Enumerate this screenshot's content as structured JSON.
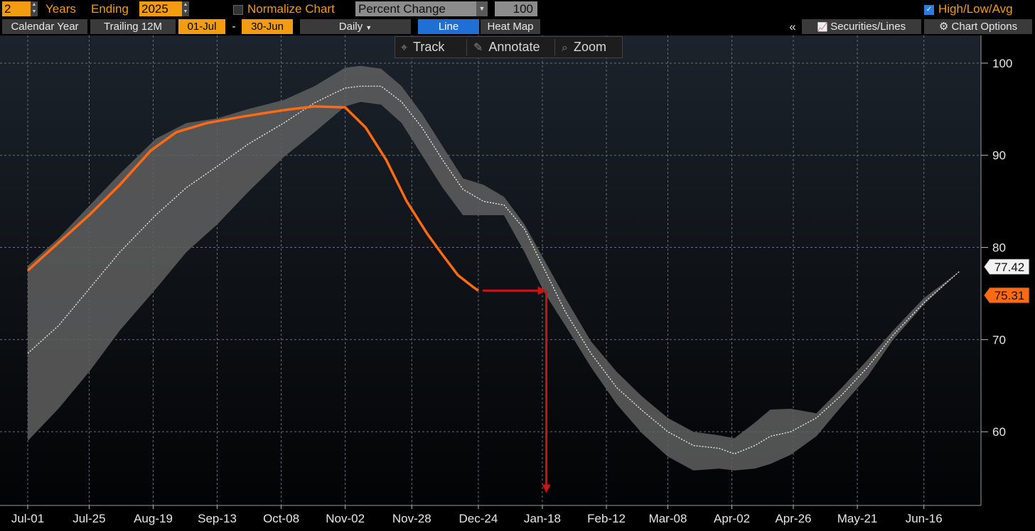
{
  "controls": {
    "years_value": "2",
    "years_label": "Years",
    "ending_label": "Ending",
    "ending_value": "2025",
    "normalize_label": "Normalize Chart",
    "normalize_mode": "Percent Change",
    "normalize_base": "100",
    "highlowavg_label": "High/Low/Avg",
    "calendar_year": "Calendar Year",
    "trailing_12m": "Trailing 12M",
    "start_date": "01-Jul",
    "dash": "-",
    "end_date": "30-Jun",
    "frequency": "Daily",
    "line_tab": "Line",
    "heatmap_tab": "Heat Map",
    "collapse": "«",
    "securities_lines": "Securities/Lines",
    "chart_options": "Chart Options"
  },
  "toolbar": {
    "track": "Track",
    "annotate": "Annotate",
    "zoom": "Zoom"
  },
  "colors": {
    "current_series": "#ff6a13",
    "band": "#5f5f5f",
    "average": "#e8e8e8",
    "arrow": "#c81414",
    "accent_button": "#f39c12",
    "active_tab": "#1f6fd6"
  },
  "chart_data": {
    "type": "line",
    "title": "",
    "xlabel": "",
    "ylabel": "",
    "ylim": [
      52,
      103
    ],
    "grid": true,
    "y_ticks": [
      60,
      70,
      80,
      90,
      100
    ],
    "x_ticks": [
      "Jul-01",
      "Jul-25",
      "Aug-19",
      "Sep-13",
      "Oct-08",
      "Nov-02",
      "Nov-28",
      "Dec-24",
      "Jan-18",
      "Feb-12",
      "Mar-08",
      "Apr-02",
      "Apr-26",
      "May-21",
      "Jun-16"
    ],
    "x_tick_days": [
      0,
      24,
      49,
      74,
      99,
      124,
      150,
      176,
      201,
      226,
      250,
      275,
      299,
      324,
      350
    ],
    "last_values": {
      "average": "77.42",
      "current": "75.31"
    },
    "series": [
      {
        "role": "current",
        "x_days": [
          0,
          12,
          24,
          36,
          48,
          58,
          70,
          84,
          100,
          112,
          124,
          132,
          140,
          148,
          156,
          162,
          168,
          174,
          176
        ],
        "values": [
          77.5,
          80.5,
          83.5,
          86.8,
          90.5,
          92.5,
          93.5,
          94.2,
          94.9,
          95.3,
          95.2,
          93.0,
          89.5,
          85.0,
          81.5,
          79.2,
          77.0,
          75.7,
          75.31
        ]
      },
      {
        "role": "average",
        "x_days": [
          0,
          12,
          24,
          36,
          50,
          62,
          74,
          86,
          100,
          112,
          124,
          130,
          138,
          146,
          154,
          162,
          170,
          178,
          186,
          194,
          202,
          210,
          220,
          230,
          240,
          250,
          260,
          270,
          276,
          284,
          290,
          298,
          308,
          318,
          328,
          338,
          350,
          364
        ],
        "values": [
          68.5,
          71.5,
          75.5,
          79.5,
          83.5,
          86.5,
          88.8,
          91.2,
          93.5,
          95.7,
          97.3,
          97.5,
          97.5,
          95.8,
          93.0,
          89.5,
          86.3,
          85.0,
          84.6,
          82.0,
          77.5,
          73.0,
          68.5,
          64.8,
          62.3,
          60.0,
          58.5,
          58.2,
          57.6,
          58.5,
          59.5,
          60.0,
          61.5,
          64.0,
          67.0,
          70.5,
          74.0,
          77.42
        ]
      },
      {
        "role": "high",
        "x_days": [
          0,
          12,
          24,
          36,
          50,
          62,
          74,
          86,
          100,
          112,
          124,
          130,
          138,
          146,
          154,
          162,
          170,
          178,
          186,
          194,
          202,
          210,
          220,
          230,
          240,
          250,
          260,
          270,
          276,
          284,
          290,
          298,
          308,
          318,
          328,
          338,
          350,
          364
        ],
        "values": [
          78.0,
          81.0,
          84.5,
          88.0,
          91.8,
          93.5,
          94.0,
          95.0,
          96.0,
          97.5,
          99.5,
          99.7,
          99.4,
          97.5,
          94.5,
          91.0,
          87.5,
          86.8,
          85.5,
          82.5,
          78.5,
          74.5,
          69.8,
          66.5,
          63.8,
          61.5,
          60.0,
          59.6,
          59.3,
          61.0,
          62.4,
          62.5,
          62.0,
          64.8,
          67.8,
          71.0,
          74.5,
          77.42
        ]
      },
      {
        "role": "low",
        "x_days": [
          0,
          12,
          24,
          36,
          50,
          62,
          74,
          86,
          100,
          112,
          124,
          130,
          138,
          146,
          154,
          162,
          170,
          178,
          186,
          194,
          202,
          210,
          220,
          230,
          240,
          250,
          260,
          270,
          276,
          284,
          290,
          298,
          308,
          318,
          328,
          338,
          350,
          364
        ],
        "values": [
          59.0,
          62.5,
          66.5,
          71.0,
          75.5,
          79.5,
          82.5,
          86.0,
          89.8,
          92.5,
          95.3,
          95.8,
          95.5,
          93.5,
          90.0,
          86.5,
          83.5,
          83.5,
          83.5,
          79.5,
          75.0,
          71.5,
          67.0,
          63.0,
          59.8,
          57.3,
          55.8,
          56.0,
          55.8,
          56.0,
          56.5,
          57.5,
          59.5,
          62.8,
          66.0,
          70.0,
          73.8,
          77.42
        ]
      }
    ],
    "annotation": {
      "start_day": 176,
      "end_day": 202,
      "level": 75.31,
      "drop_to": 53.5
    }
  }
}
